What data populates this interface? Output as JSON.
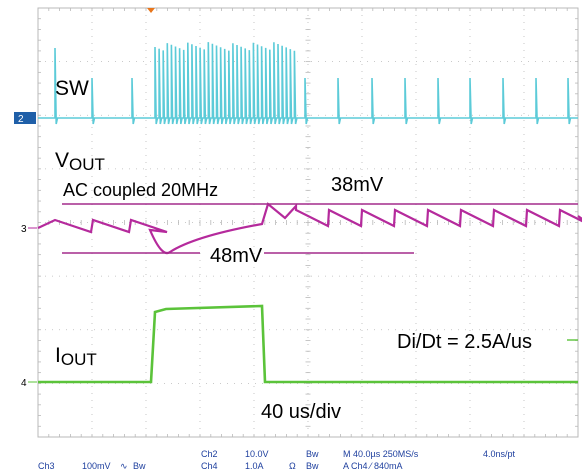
{
  "annotations": {
    "sw": "SW",
    "vout_main": "V",
    "vout_sub": "OUT",
    "ac_coupled": "AC coupled 20MHz",
    "overshoot": "38mV",
    "undershoot": "48mV",
    "iout_main": "I",
    "iout_sub": "OUT",
    "didt": "Di/Dt = 2.5A/us",
    "timebase_note": "40 us/div"
  },
  "channel_markers": {
    "ch2": "2",
    "ch3": "3",
    "ch4": "4"
  },
  "status_bar": {
    "ch3_label": "Ch3",
    "ch3_scale": "100mV",
    "ch3_bw": "Bw",
    "ch2_label": "Ch2",
    "ch2_scale": "10.0V",
    "ch2_bw": "Bw",
    "ch4_label": "Ch4",
    "ch4_scale": "1.0A",
    "ch4_coupling": "Ω",
    "ch4_bw": "Bw",
    "horizontal": "M 40.0µs 250MS/s",
    "resolution": "4.0ns/pt",
    "trigger": "A  Ch4  ⁄  840mA"
  },
  "colors": {
    "ch2": "#5ccbd8",
    "ch3": "#b52a9c",
    "ch4": "#5bc33a",
    "ref_lines": "#a32b8c",
    "marker_ch2": "#1f5fa8",
    "trigger_marker": "#e8751a",
    "grid": "#b9b9b9",
    "status_text": "#1e3f9e"
  }
}
